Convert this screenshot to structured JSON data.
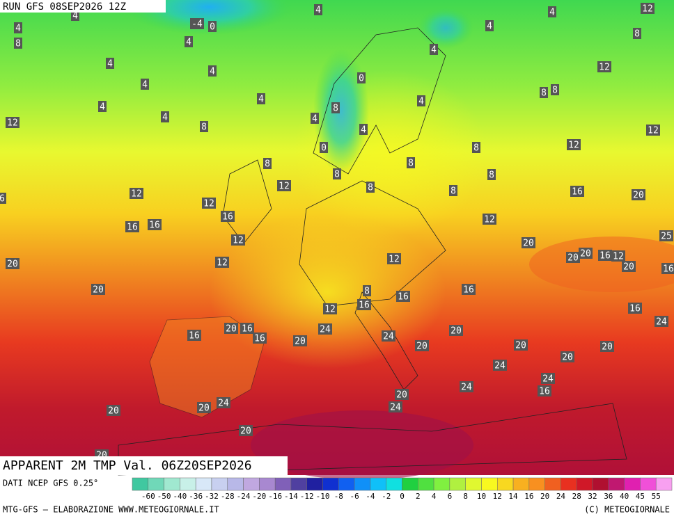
{
  "header": {
    "run": "RUN GFS 08SEP2026 12Z"
  },
  "title": "APPARENT 2M TMP Val. 06Z20SEP2026",
  "map": {
    "labels": [
      4,
      4,
      4,
      12,
      4,
      -4,
      0,
      4,
      8,
      8,
      4,
      4,
      4,
      4,
      0,
      12,
      4,
      8,
      8,
      4,
      4,
      4,
      4,
      8,
      4,
      12,
      8,
      4,
      12,
      0,
      12,
      8,
      8,
      8,
      8,
      8,
      12,
      8,
      8,
      12,
      16,
      20,
      12,
      16,
      16,
      16,
      12,
      12,
      20,
      20,
      20,
      16,
      12,
      25,
      20,
      12,
      12,
      20,
      16,
      20,
      8,
      16,
      12,
      16,
      16,
      16,
      20,
      24,
      20,
      16,
      24,
      16,
      16,
      24,
      20,
      20,
      20,
      20,
      20,
      24,
      24,
      24,
      16,
      20,
      24,
      20,
      24,
      20,
      20,
      20,
      6
    ]
  },
  "legend": {
    "source": "DATI NCEP GFS 0.25°",
    "colors": [
      "#40c8a0",
      "#70d8b8",
      "#a0e8d0",
      "#c8f0e8",
      "#d8e8f8",
      "#c8d0f0",
      "#b8b8e8",
      "#c0a8e0",
      "#a888d0",
      "#8060b8",
      "#5040a0",
      "#2020a0",
      "#1030d0",
      "#1060f0",
      "#1090f8",
      "#10c0f8",
      "#10e0e0",
      "#20d040",
      "#50e040",
      "#80f040",
      "#b0f040",
      "#e0f830",
      "#f8f820",
      "#f8d820",
      "#f8b020",
      "#f89020",
      "#f06020",
      "#e83020",
      "#d01828",
      "#b01030",
      "#c01870",
      "#e020b0",
      "#f050d8",
      "#f8a0f0"
    ],
    "ticks": [
      -60,
      -50,
      -40,
      -36,
      -32,
      -28,
      -24,
      -20,
      -16,
      -14,
      -12,
      -10,
      -8,
      -6,
      -4,
      -2,
      0,
      2,
      4,
      6,
      8,
      10,
      12,
      14,
      16,
      20,
      24,
      28,
      32,
      36,
      40,
      45,
      55
    ]
  },
  "footer": {
    "left": "MTG-GFS — ELABORAZIONE WWW.METEOGIORNALE.IT",
    "right": "(C) METEOGIORNALE"
  }
}
